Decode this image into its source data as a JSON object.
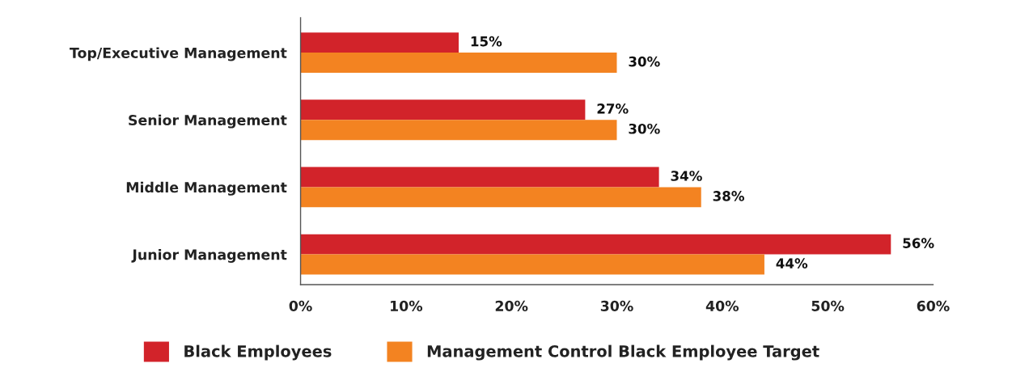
{
  "chart_data": {
    "type": "bar",
    "orientation": "horizontal",
    "categories": [
      "Top/Executive Management",
      "Senior Management",
      "Middle Management",
      "Junior Management"
    ],
    "series": [
      {
        "name": "Black Employees",
        "color": "#d2232a",
        "values": [
          15,
          27,
          34,
          56
        ],
        "value_labels": [
          "15%",
          "27%",
          "34%",
          "56%"
        ]
      },
      {
        "name": "Management Control Black Employee Target",
        "color": "#f38321",
        "values": [
          30,
          30,
          38,
          44
        ],
        "value_labels": [
          "30%",
          "30%",
          "38%",
          "44%"
        ]
      }
    ],
    "xlim": [
      0,
      60
    ],
    "xticks": [
      {
        "value": 0,
        "label": "0%"
      },
      {
        "value": 10,
        "label": "10%"
      },
      {
        "value": 20,
        "label": "20%"
      },
      {
        "value": 30,
        "label": "30%"
      },
      {
        "value": 40,
        "label": "40%"
      },
      {
        "value": 50,
        "label": "50%"
      },
      {
        "value": 60,
        "label": "60%"
      }
    ],
    "grid": false,
    "legend": "bottom"
  }
}
